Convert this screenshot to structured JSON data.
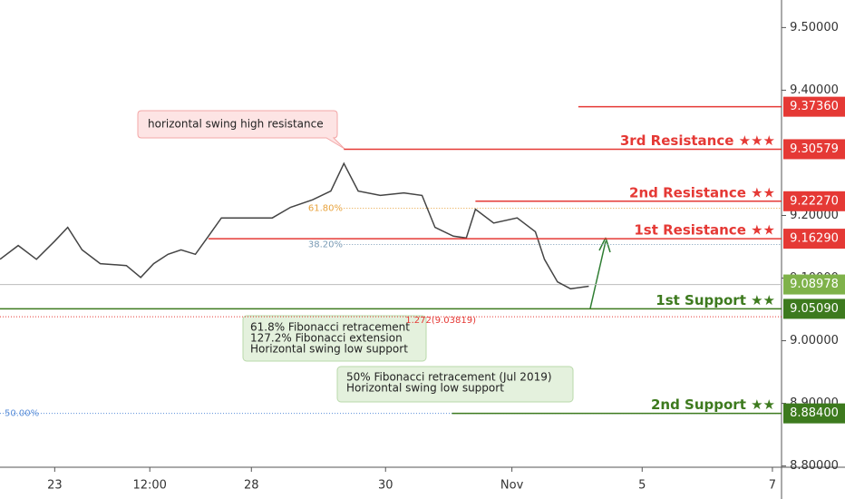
{
  "chart_data": {
    "type": "line",
    "xlim": [
      0,
      60
    ],
    "ylim": [
      8.798,
      9.544
    ],
    "xticks": [
      {
        "value": 4.2,
        "label": "23"
      },
      {
        "value": 11.5,
        "label": "12:00"
      },
      {
        "value": 19.3,
        "label": "28"
      },
      {
        "value": 29.6,
        "label": "30"
      },
      {
        "value": 39.3,
        "label": "Nov"
      },
      {
        "value": 49.3,
        "label": "5"
      },
      {
        "value": 59.3,
        "label": "7"
      }
    ],
    "yticks": [
      {
        "value": 9.5,
        "label": "9.50000"
      },
      {
        "value": 9.4,
        "label": "9.40000"
      },
      {
        "value": 9.2,
        "label": "9.20000"
      },
      {
        "value": 9.1,
        "label": "9.10000"
      },
      {
        "value": 9.0,
        "label": "9.00000"
      },
      {
        "value": 8.9,
        "label": "8.90000"
      },
      {
        "value": 8.8,
        "label": "8.80000"
      }
    ],
    "series": [
      {
        "color": "#444444",
        "x": [
          0,
          1.4,
          2.8,
          4.2,
          5.2,
          6.3,
          7.7,
          9.7,
          10.8,
          11.8,
          12.9,
          13.9,
          15.0,
          16.0,
          17.0,
          18.8,
          20.9,
          22.3,
          24.0,
          25.4,
          26.4,
          27.5,
          29.2,
          31.0,
          32.4,
          33.4,
          34.8,
          35.8,
          36.5,
          37.9,
          39.7,
          41.1,
          41.8,
          42.8,
          43.8,
          45.2
        ],
        "values": [
          9.13,
          9.152,
          9.13,
          9.159,
          9.181,
          9.145,
          9.123,
          9.12,
          9.101,
          9.123,
          9.138,
          9.145,
          9.138,
          9.167,
          9.196,
          9.196,
          9.196,
          9.213,
          9.225,
          9.239,
          9.283,
          9.239,
          9.232,
          9.236,
          9.232,
          9.181,
          9.167,
          9.164,
          9.21,
          9.188,
          9.196,
          9.174,
          9.13,
          9.094,
          9.083,
          9.087
        ]
      }
    ],
    "levels": [
      {
        "value": 9.3736,
        "label": "9.37360",
        "from": 44.4,
        "color": "#e53935"
      },
      {
        "value": 9.30579,
        "label": "9.30579",
        "name": "3rd Resistance ★★★",
        "from": 26.4,
        "color": "#e53935"
      },
      {
        "value": 9.2227,
        "label": "9.22270",
        "name": "2nd Resistance ★★",
        "from": 36.5,
        "color": "#e53935"
      },
      {
        "value": 9.1629,
        "label": "9.16290",
        "name": "1st Resistance ★★",
        "from": 16.0,
        "color": "#e53935"
      },
      {
        "value": 9.0509,
        "label": "9.05090",
        "name": "1st Support ★★",
        "from": 0,
        "color": "#3d7a1e"
      },
      {
        "value": 8.884,
        "label": "8.88400",
        "name": "2nd Support ★★",
        "from": 34.7,
        "color": "#3d7a1e"
      }
    ],
    "current": {
      "value": 9.08978,
      "label": "9.08978",
      "color": "#7fb24a"
    },
    "fibs": [
      {
        "label": "61.80%",
        "value": 9.2116,
        "from": 26.4,
        "color": "#e8a33d"
      },
      {
        "label": "38.20%",
        "value": 9.1536,
        "from": 26.4,
        "color": "#7a9bb5"
      },
      {
        "label": "1.272(9.03819)",
        "value": 9.03819,
        "from": 0,
        "color": "#e53935"
      },
      {
        "label": "50.00%",
        "value": 8.884,
        "from": 0,
        "color": "#5b8fd9"
      }
    ],
    "callouts": [
      {
        "lines": [
          "horizontal swing high resistance"
        ]
      },
      {
        "lines": [
          "61.8% Fibonacci retracement",
          "127.2% Fibonacci extension",
          "Horizontal swing low support"
        ]
      },
      {
        "lines": [
          "50% Fibonacci retracement (Jul 2019)",
          "Horizontal swing low support"
        ]
      }
    ]
  }
}
